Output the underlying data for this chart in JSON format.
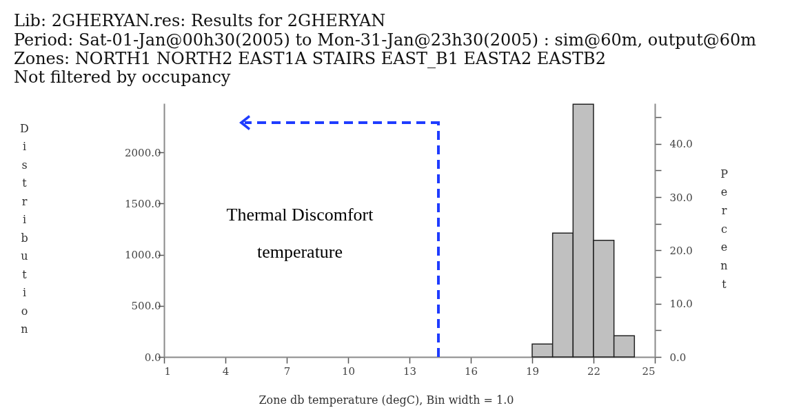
{
  "chart_data": {
    "type": "histogram",
    "title": "Lib: 2GHERYAN.res: Results for 2GHERYAN",
    "subtitle": "Period: Sat-01-Jan@00h30(2005) to Mon-31-Jan@23h30(2005) : sim@60m, output@60m\nZones: NORTH1 NORTH2 EAST1A STAIRS EAST_B1 EASTA2 EASTB2\nNot filtered by occupancy",
    "xlabel": "Zone db temperature (degC), Bin width =  1.0",
    "ylabel": "Distribution",
    "y2label": "Percent",
    "bins": [
      19,
      20,
      21,
      22,
      23,
      24
    ],
    "values": [
      126,
      1212,
      2471,
      1140,
      208
    ],
    "color": "#c0c0c0",
    "xlim": [
      1,
      25
    ],
    "xticks": [
      1,
      4,
      7,
      10,
      13,
      16,
      19,
      22,
      25
    ],
    "ylim": [
      0,
      2480
    ],
    "yticks": [
      {
        "value": 0,
        "label": "0.0"
      },
      {
        "value": 500,
        "label": "500.0"
      },
      {
        "value": 1000,
        "label": "1000.0"
      },
      {
        "value": 1500,
        "label": "1500.0"
      },
      {
        "value": 2000,
        "label": "2000.0"
      }
    ],
    "y2lim": [
      0,
      47.6
    ],
    "y2ticks": [
      {
        "value": 0,
        "label": "0.0"
      },
      {
        "value": 5,
        "label": null
      },
      {
        "value": 10,
        "label": "10.0"
      },
      {
        "value": 15,
        "label": null
      },
      {
        "value": 20,
        "label": "20.0"
      },
      {
        "value": 25,
        "label": null
      },
      {
        "value": 30,
        "label": "30.0"
      },
      {
        "value": 35,
        "label": null
      },
      {
        "value": 40,
        "label": "40.0"
      },
      {
        "value": 45,
        "label": null
      }
    ],
    "annotations": [
      "Thermal Discomfort temperature"
    ]
  }
}
